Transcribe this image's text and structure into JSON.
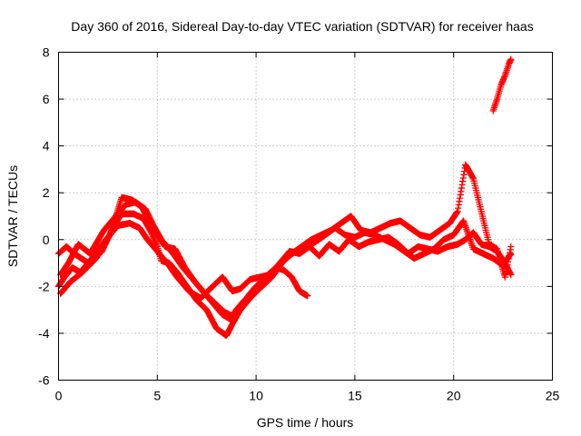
{
  "chart_data": {
    "type": "scatter",
    "title": "Day 360 of 2016, Sidereal Day-to-day VTEC variation (SDTVAR) for receiver haas",
    "xlabel": "GPS time / hours",
    "ylabel": "SDTVAR / TECUs",
    "xlim": [
      0,
      25
    ],
    "ylim": [
      -6,
      8
    ],
    "xticks": [
      0,
      5,
      10,
      15,
      20,
      25
    ],
    "yticks": [
      -6,
      -4,
      -2,
      0,
      2,
      4,
      6,
      8
    ],
    "grid": true,
    "marker": "+",
    "color": "#ff0000",
    "series": [
      {
        "name": "track-1",
        "x": [
          0.0,
          0.4,
          0.8,
          1.5,
          2.2,
          2.8,
          3.2,
          3.8,
          4.3,
          4.7,
          5.0,
          5.2,
          5.6,
          6.0,
          6.5,
          7.0,
          7.5,
          8.0,
          8.5,
          8.8,
          9.2,
          9.6,
          10.0,
          10.5,
          11.0,
          11.5,
          12.0,
          12.5,
          13.0,
          13.5,
          14.0,
          14.5,
          15.0,
          15.5,
          16.0,
          16.5,
          17.0,
          17.5,
          18.0,
          18.5,
          19.0,
          19.5,
          20.0,
          20.5,
          21.0,
          21.5,
          22.0,
          22.5,
          22.9
        ],
        "y": [
          -0.6,
          -0.3,
          -0.6,
          -1.0,
          -0.5,
          0.6,
          1.1,
          1.1,
          0.9,
          0.3,
          -0.3,
          -0.9,
          -1.0,
          -1.4,
          -2.0,
          -2.6,
          -3.0,
          -3.8,
          -4.1,
          -3.6,
          -3.0,
          -2.4,
          -2.0,
          -1.6,
          -1.2,
          -0.8,
          -0.5,
          -0.3,
          -0.1,
          0.2,
          0.5,
          0.2,
          0.1,
          0.3,
          0.2,
          0.0,
          -0.2,
          -0.5,
          -0.8,
          -0.6,
          -0.4,
          0.0,
          0.2,
          0.8,
          -0.4,
          -0.6,
          -0.8,
          -1.1,
          -0.6
        ]
      },
      {
        "name": "track-2",
        "x": [
          0.1,
          0.5,
          1.0,
          1.6,
          2.3,
          2.9,
          3.4,
          3.9,
          4.4,
          4.8,
          5.2,
          5.8,
          6.3,
          6.8,
          7.3,
          7.8,
          8.3,
          8.7,
          9.0,
          9.4,
          9.8,
          10.2,
          10.6,
          11.0,
          11.4,
          11.8,
          12.2,
          12.6
        ],
        "y": [
          -1.5,
          -1.0,
          -0.2,
          -0.6,
          0.4,
          1.0,
          1.5,
          1.6,
          1.3,
          0.6,
          0.0,
          -0.6,
          -1.2,
          -1.7,
          -2.2,
          -2.7,
          -3.2,
          -3.4,
          -3.0,
          -2.6,
          -2.3,
          -1.9,
          -1.5,
          -1.2,
          -1.3,
          -1.6,
          -2.2,
          -2.4
        ]
      },
      {
        "name": "track-3",
        "x": [
          0.1,
          0.6,
          1.2,
          1.9,
          2.6,
          3.2,
          3.7,
          4.2,
          4.6,
          5.0,
          5.4,
          5.9,
          6.4,
          6.9,
          7.4,
          7.9,
          8.4,
          8.9,
          9.3,
          9.8,
          10.3,
          10.8,
          11.3,
          11.8,
          12.3,
          12.8,
          13.3,
          13.8,
          14.3,
          14.8,
          15.3,
          15.8,
          16.3,
          16.8,
          17.3,
          17.8,
          18.3,
          18.8,
          19.3,
          19.8,
          20.2,
          20.6,
          21.0,
          21.4,
          21.8,
          22.2,
          22.6,
          22.9
        ],
        "y": [
          -2.3,
          -1.8,
          -1.4,
          -0.8,
          0.2,
          1.8,
          1.7,
          1.4,
          0.8,
          0.2,
          -0.3,
          -0.4,
          -1.2,
          -1.8,
          -2.3,
          -2.7,
          -3.1,
          -3.3,
          -2.9,
          -2.4,
          -2.0,
          -1.6,
          -1.0,
          -0.6,
          -0.3,
          0.0,
          0.2,
          0.4,
          0.7,
          1.0,
          0.4,
          0.3,
          0.5,
          0.7,
          0.8,
          0.5,
          0.2,
          0.1,
          0.4,
          0.7,
          1.2,
          3.2,
          2.6,
          1.2,
          -0.2,
          -0.4,
          -1.6,
          -0.3
        ]
      },
      {
        "name": "track-4",
        "x": [
          0.0,
          0.3,
          0.7,
          1.1,
          1.7,
          2.4,
          3.0,
          3.6,
          4.1,
          4.5,
          5.0,
          5.5,
          6.0,
          6.6,
          7.2,
          7.8,
          8.3,
          8.8,
          9.2,
          9.7,
          10.2,
          10.7,
          11.2,
          11.7,
          12.2,
          12.7,
          13.2,
          13.7,
          14.2,
          14.7,
          15.2,
          15.7,
          16.2,
          16.7,
          17.2,
          17.7,
          18.2,
          18.7,
          19.2,
          19.7,
          20.2,
          20.6,
          21.0,
          21.4,
          21.8,
          22.2,
          22.6,
          22.9
        ],
        "y": [
          -2.0,
          -1.6,
          -1.2,
          -1.4,
          -0.8,
          0.0,
          0.6,
          0.7,
          0.5,
          0.0,
          -0.5,
          -1.0,
          -1.6,
          -2.2,
          -2.5,
          -2.0,
          -1.6,
          -2.2,
          -2.1,
          -1.7,
          -1.6,
          -1.5,
          -1.0,
          -0.5,
          -0.6,
          -0.3,
          -0.7,
          -0.2,
          -0.5,
          0.0,
          -0.3,
          -0.1,
          0.0,
          0.1,
          -0.2,
          -0.6,
          -0.3,
          -0.4,
          -0.5,
          -0.3,
          -0.2,
          0.0,
          0.3,
          -0.2,
          -0.3,
          -0.5,
          -1.0,
          -1.5
        ]
      },
      {
        "name": "track-5",
        "x": [
          22.0,
          22.2,
          22.4,
          22.6,
          22.8,
          22.9
        ],
        "y": [
          5.5,
          6.0,
          6.6,
          7.0,
          7.5,
          7.7
        ]
      }
    ]
  }
}
